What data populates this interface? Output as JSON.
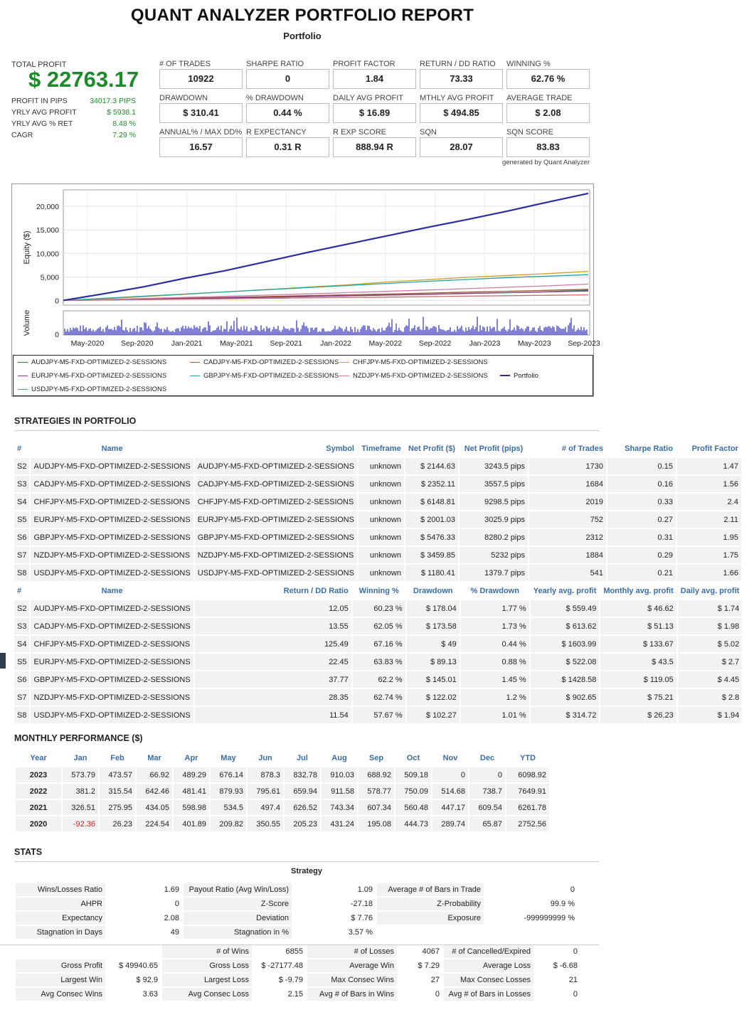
{
  "header": {
    "title": "QUANT ANALYZER PORTFOLIO REPORT",
    "subtitle": "Portfolio"
  },
  "summary": {
    "total_profit_label": "TOTAL PROFIT",
    "total_profit": "$ 22763.17",
    "rows": [
      {
        "label": "PROFIT IN PIPS",
        "value": "34017.3 PIPS"
      },
      {
        "label": "YRLY AVG PROFIT",
        "value": "$ 5938.1"
      },
      {
        "label": "YRLY AVG % RET",
        "value": "8.48 %"
      },
      {
        "label": "CAGR",
        "value": "7.29 %"
      }
    ]
  },
  "stats_grid": [
    {
      "label": "# OF TRADES",
      "value": "10922"
    },
    {
      "label": "SHARPE RATIO",
      "value": "0"
    },
    {
      "label": "PROFIT FACTOR",
      "value": "1.84"
    },
    {
      "label": "RETURN / DD RATIO",
      "value": "73.33"
    },
    {
      "label": "WINNING %",
      "value": "62.76 %"
    },
    {
      "label": "DRAWDOWN",
      "value": "$ 310.41"
    },
    {
      "label": "% DRAWDOWN",
      "value": "0.44 %"
    },
    {
      "label": "DAILY AVG PROFIT",
      "value": "$ 16.89"
    },
    {
      "label": "MTHLY AVG PROFIT",
      "value": "$ 494.85"
    },
    {
      "label": "AVERAGE TRADE",
      "value": "$ 2.08"
    },
    {
      "label": "ANNUAL% / MAX DD%",
      "value": "16.57"
    },
    {
      "label": "R EXPECTANCY",
      "value": "0.31 R"
    },
    {
      "label": "R EXP SCORE",
      "value": "888.94 R"
    },
    {
      "label": "SQN",
      "value": "28.07"
    },
    {
      "label": "SQN SCORE",
      "value": "83.83"
    }
  ],
  "generated_by": "generated by Quant Analyzer",
  "chart_data": {
    "type": "line",
    "ylabel": "Equity ($)",
    "volume_label": "Volume",
    "y_ticks": [
      0,
      5000,
      10000,
      15000,
      20000
    ],
    "y_tick_labels": [
      "0",
      "5,000",
      "10,000",
      "15,000",
      "20,000"
    ],
    "ylim": [
      -1000,
      23500
    ],
    "x_ticks": [
      "May-2020",
      "Sep-2020",
      "Jan-2021",
      "May-2021",
      "Sep-2021",
      "Jan-2022",
      "May-2022",
      "Sep-2022",
      "Jan-2023",
      "May-2023",
      "Sep-2023"
    ],
    "volume_ticks": [
      "0"
    ],
    "series": [
      {
        "name": "AUDJPY-M5-FXD-OPTIMIZED-2-SESSIONS",
        "color": "#2e7d32",
        "values": [
          0,
          100,
          220,
          350,
          500,
          650,
          820,
          980,
          1150,
          1300,
          1480,
          1650,
          1850,
          2145
        ]
      },
      {
        "name": "CADJPY-M5-FXD-OPTIMIZED-2-SESSIONS",
        "color": "#a0522d",
        "values": [
          0,
          150,
          300,
          480,
          650,
          820,
          1000,
          1180,
          1350,
          1550,
          1750,
          1950,
          2150,
          2352
        ]
      },
      {
        "name": "CHFJPY-M5-FXD-OPTIMIZED-2-SESSIONS",
        "color": "#c9a227",
        "values": [
          0,
          350,
          800,
          1300,
          1800,
          2300,
          2800,
          3300,
          3900,
          4400,
          4900,
          5300,
          5700,
          6149
        ]
      },
      {
        "name": "EURJPY-M5-FXD-OPTIMIZED-2-SESSIONS",
        "color": "#8e3b8e",
        "values": [
          0,
          120,
          250,
          380,
          520,
          660,
          800,
          950,
          1120,
          1300,
          1480,
          1650,
          1820,
          2001
        ]
      },
      {
        "name": "GBPJPY-M5-FXD-OPTIMIZED-2-SESSIONS",
        "color": "#20a3a3",
        "values": [
          0,
          450,
          900,
          1350,
          1800,
          2250,
          2700,
          3150,
          3600,
          4050,
          4450,
          4850,
          5150,
          5476
        ]
      },
      {
        "name": "NZDJPY-M5-FXD-OPTIMIZED-2-SESSIONS",
        "color": "#d07aa8",
        "values": [
          0,
          200,
          420,
          650,
          880,
          1120,
          1380,
          1650,
          1920,
          2200,
          2500,
          2800,
          3100,
          3460
        ]
      },
      {
        "name": "USDJPY-M5-FXD-OPTIMIZED-2-SESSIONS",
        "color": "#c07070",
        "values": [
          0,
          80,
          160,
          250,
          340,
          430,
          520,
          610,
          700,
          800,
          900,
          1000,
          1090,
          1180
        ]
      },
      {
        "name": "Portfolio",
        "color": "#2c2c9e",
        "values": [
          0,
          1400,
          2900,
          4700,
          6300,
          8200,
          10100,
          11900,
          13700,
          15500,
          17200,
          19000,
          20900,
          22763
        ]
      }
    ]
  },
  "strategies": {
    "title": "STRATEGIES IN PORTFOLIO",
    "headers1": [
      "#",
      "Name",
      "Symbol",
      "Timeframe",
      "Net Profit ($)",
      "Net Profit (pips)",
      "# of Trades",
      "Sharpe Ratio",
      "Profit Factor"
    ],
    "rows1": [
      [
        "S2",
        "AUDJPY-M5-FXD-OPTIMIZED-2-SESSIONS",
        "AUDJPY-M5-FXD-OPTIMIZED-2-SESSIONS",
        "unknown",
        "$ 2144.63",
        "3243.5 pips",
        "1730",
        "0.15",
        "1.47"
      ],
      [
        "S3",
        "CADJPY-M5-FXD-OPTIMIZED-2-SESSIONS",
        "CADJPY-M5-FXD-OPTIMIZED-2-SESSIONS",
        "unknown",
        "$ 2352.11",
        "3557.5 pips",
        "1684",
        "0.16",
        "1.56"
      ],
      [
        "S4",
        "CHFJPY-M5-FXD-OPTIMIZED-2-SESSIONS",
        "CHFJPY-M5-FXD-OPTIMIZED-2-SESSIONS",
        "unknown",
        "$ 6148.81",
        "9298.5 pips",
        "2019",
        "0.33",
        "2.4"
      ],
      [
        "S5",
        "EURJPY-M5-FXD-OPTIMIZED-2-SESSIONS",
        "EURJPY-M5-FXD-OPTIMIZED-2-SESSIONS",
        "unknown",
        "$ 2001.03",
        "3025.9 pips",
        "752",
        "0.27",
        "2.11"
      ],
      [
        "S6",
        "GBPJPY-M5-FXD-OPTIMIZED-2-SESSIONS",
        "GBPJPY-M5-FXD-OPTIMIZED-2-SESSIONS",
        "unknown",
        "$ 5476.33",
        "8280.2 pips",
        "2312",
        "0.31",
        "1.95"
      ],
      [
        "S7",
        "NZDJPY-M5-FXD-OPTIMIZED-2-SESSIONS",
        "NZDJPY-M5-FXD-OPTIMIZED-2-SESSIONS",
        "unknown",
        "$ 3459.85",
        "5232 pips",
        "1884",
        "0.29",
        "1.75"
      ],
      [
        "S8",
        "USDJPY-M5-FXD-OPTIMIZED-2-SESSIONS",
        "USDJPY-M5-FXD-OPTIMIZED-2-SESSIONS",
        "unknown",
        "$ 1180.41",
        "1379.7 pips",
        "541",
        "0.21",
        "1.66"
      ]
    ],
    "headers2": [
      "#",
      "Name",
      "Return / DD Ratio",
      "Winning %",
      "Drawdown",
      "% Drawdown",
      "Yearly avg. profit",
      "Monthly avg. profit",
      "Daily avg. profit"
    ],
    "rows2": [
      [
        "S2",
        "AUDJPY-M5-FXD-OPTIMIZED-2-SESSIONS",
        "12.05",
        "60.23 %",
        "$ 178.04",
        "1.77 %",
        "$ 559.49",
        "$ 46.62",
        "$ 1.74"
      ],
      [
        "S3",
        "CADJPY-M5-FXD-OPTIMIZED-2-SESSIONS",
        "13.55",
        "62.05 %",
        "$ 173.58",
        "1.73 %",
        "$ 613.62",
        "$ 51.13",
        "$ 1.98"
      ],
      [
        "S4",
        "CHFJPY-M5-FXD-OPTIMIZED-2-SESSIONS",
        "125.49",
        "67.16 %",
        "$ 49",
        "0.44 %",
        "$ 1603.99",
        "$ 133.67",
        "$ 5.02"
      ],
      [
        "S5",
        "EURJPY-M5-FXD-OPTIMIZED-2-SESSIONS",
        "22.45",
        "63.83 %",
        "$ 89.13",
        "0.88 %",
        "$ 522.08",
        "$ 43.5",
        "$ 2.7"
      ],
      [
        "S6",
        "GBPJPY-M5-FXD-OPTIMIZED-2-SESSIONS",
        "37.77",
        "62.2 %",
        "$ 145.01",
        "1.45 %",
        "$ 1428.58",
        "$ 119.05",
        "$ 4.45"
      ],
      [
        "S7",
        "NZDJPY-M5-FXD-OPTIMIZED-2-SESSIONS",
        "28.35",
        "62.74 %",
        "$ 122.02",
        "1.2 %",
        "$ 902.65",
        "$ 75.21",
        "$ 2.8"
      ],
      [
        "S8",
        "USDJPY-M5-FXD-OPTIMIZED-2-SESSIONS",
        "11.54",
        "57.67 %",
        "$ 102.27",
        "1.01 %",
        "$ 314.72",
        "$ 26.23",
        "$ 1.94"
      ]
    ]
  },
  "monthly": {
    "title": "MONTHLY PERFORMANCE ($)",
    "headers": [
      "Year",
      "Jan",
      "Feb",
      "Mar",
      "Apr",
      "May",
      "Jun",
      "Jul",
      "Aug",
      "Sep",
      "Oct",
      "Nov",
      "Dec",
      "YTD"
    ],
    "rows": [
      [
        "2023",
        "573.79",
        "473.57",
        "66.92",
        "489.29",
        "676.14",
        "878.3",
        "832.78",
        "910.03",
        "688.92",
        "509.18",
        "0",
        "0",
        "6098.92"
      ],
      [
        "2022",
        "381.2",
        "315.54",
        "642.46",
        "481.41",
        "879.93",
        "795.61",
        "659.94",
        "911.58",
        "578.77",
        "750.09",
        "514.68",
        "738.7",
        "7649.91"
      ],
      [
        "2021",
        "326.51",
        "275.95",
        "434.05",
        "598.98",
        "534.5",
        "497.4",
        "626.52",
        "743.34",
        "607.34",
        "560.48",
        "447.17",
        "609.54",
        "6261.78"
      ],
      [
        "2020",
        "-92.36",
        "26.23",
        "224.54",
        "401.89",
        "209.82",
        "350.55",
        "205.23",
        "431.24",
        "195.08",
        "444.73",
        "289.74",
        "65.87",
        "2752.56"
      ]
    ]
  },
  "stats": {
    "title": "STATS",
    "strategy_label": "Strategy",
    "table1": [
      [
        "Wins/Losses Ratio",
        "1.69",
        "Payout Ratio (Avg Win/Loss)",
        "1.09",
        "Average # of Bars in Trade",
        "0"
      ],
      [
        "AHPR",
        "0",
        "Z-Score",
        "-27.18",
        "Z-Probability",
        "99.9 %"
      ],
      [
        "Expectancy",
        "2.08",
        "Deviation",
        "$ 7.76",
        "Exposure",
        "-999999999 %"
      ],
      [
        "Stagnation in Days",
        "49",
        "Stagnation in %",
        "3.57 %",
        "",
        ""
      ]
    ],
    "table2_header": [
      "",
      "",
      "# of Wins",
      "6855",
      "# of Losses",
      "4067",
      "# of Cancelled/Expired",
      "0"
    ],
    "table2": [
      [
        "Gross Profit",
        "$ 49940.65",
        "Gross Loss",
        "$ -27177.48",
        "Average Win",
        "$ 7.29",
        "Average Loss",
        "$ -6.68"
      ],
      [
        "Largest Win",
        "$ 92.9",
        "Largest Loss",
        "$ -9.79",
        "Max Consec Wins",
        "27",
        "Max Consec Losses",
        "21"
      ],
      [
        "Avg Consec Wins",
        "3.63",
        "Avg Consec Loss",
        "2.15",
        "Avg # of Bars in Wins",
        "0",
        "Avg # of Bars in Losses",
        "0"
      ]
    ]
  }
}
